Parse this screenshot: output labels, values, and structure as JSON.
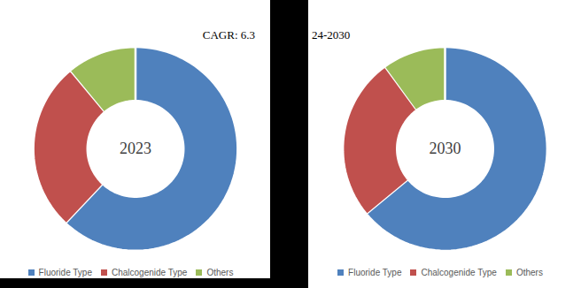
{
  "chart_data": [
    {
      "type": "pie",
      "title": "2023",
      "annotations": [
        "CAGR: 6.3"
      ],
      "categories": [
        "Fluoride Type",
        "Chalcogenide Type",
        "Others"
      ],
      "values": [
        62,
        27,
        11
      ],
      "colors": [
        "#4f81bd",
        "#c0504d",
        "#9bbb59"
      ],
      "legend": "bottom"
    },
    {
      "type": "pie",
      "title": "2030",
      "annotations": [
        "24-2030"
      ],
      "categories": [
        "Fluoride Type",
        "Chalcogenide Type",
        "Others"
      ],
      "values": [
        64,
        26,
        10
      ],
      "colors": [
        "#4f81bd",
        "#c0504d",
        "#9bbb59"
      ],
      "legend": "bottom"
    }
  ]
}
